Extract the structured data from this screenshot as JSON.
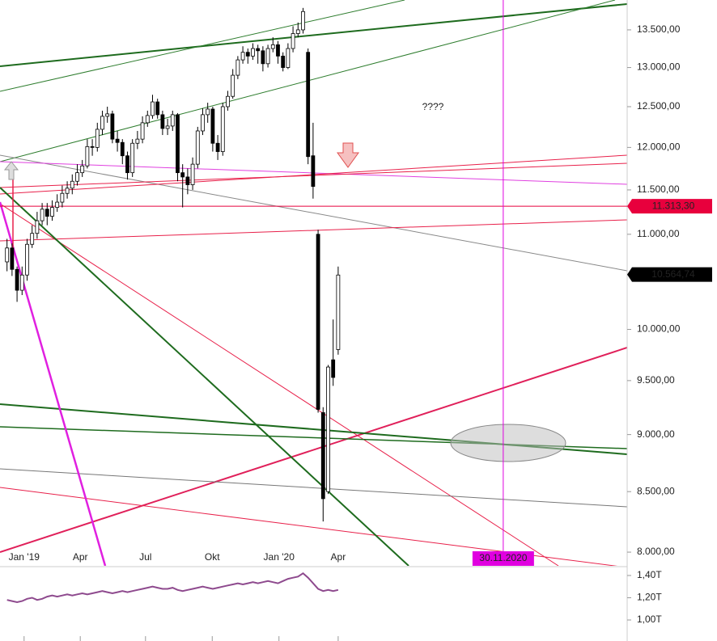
{
  "chart_data": [
    {
      "type": "candlestick",
      "open": [
        10700,
        10850,
        10620,
        10400,
        10560,
        10890,
        11010,
        11150,
        11280,
        11200,
        11300,
        11360,
        11460,
        11520,
        11600,
        11700,
        11780,
        12010,
        12000,
        12220,
        12380,
        12410,
        12100,
        12060,
        11900,
        11700,
        12050,
        12100,
        12300,
        12390,
        12560,
        12400,
        12230,
        12260,
        12400,
        11700,
        11650,
        11560,
        11800,
        12200,
        12400,
        12470,
        12050,
        11950,
        12500,
        12630,
        12900,
        13100,
        13200,
        13150,
        13250,
        13220,
        13050,
        13250,
        13300,
        13150,
        13000,
        13250,
        13450,
        13500,
        13200,
        11900,
        11000,
        9200,
        8500,
        9700,
        9800
      ],
      "high": [
        10950,
        10900,
        10650,
        10650,
        10950,
        11100,
        11250,
        11350,
        11350,
        11380,
        11450,
        11550,
        11600,
        11680,
        11800,
        11850,
        12100,
        12100,
        12300,
        12450,
        12500,
        12450,
        12200,
        12100,
        11950,
        12100,
        12200,
        12380,
        12450,
        12650,
        12600,
        12450,
        12350,
        12450,
        12420,
        11800,
        11750,
        11880,
        12250,
        12480,
        12550,
        12500,
        12150,
        12550,
        12700,
        12980,
        13150,
        13280,
        13250,
        13320,
        13300,
        13280,
        13300,
        13400,
        13350,
        13200,
        13320,
        13550,
        13600,
        13800,
        13250,
        12300,
        11050,
        9250,
        9650,
        10100,
        10650
      ],
      "low": [
        10600,
        10550,
        10280,
        10350,
        10500,
        10850,
        10950,
        11100,
        11100,
        11150,
        11250,
        11300,
        11400,
        11450,
        11550,
        11650,
        11750,
        11900,
        11950,
        12150,
        12300,
        12050,
        11950,
        11800,
        11620,
        11650,
        11980,
        12050,
        12250,
        12350,
        12350,
        12150,
        12150,
        12200,
        11600,
        11300,
        11450,
        11500,
        11750,
        12150,
        12300,
        11950,
        11850,
        11900,
        12450,
        12600,
        12850,
        13050,
        13050,
        13100,
        13050,
        12950,
        13000,
        13200,
        13050,
        12950,
        12980,
        13200,
        13400,
        13450,
        11800,
        11400,
        9200,
        8250,
        8480,
        9450,
        9750
      ],
      "close": [
        10850,
        10620,
        10400,
        10560,
        10890,
        11010,
        11150,
        11280,
        11200,
        11300,
        11360,
        11460,
        11520,
        11600,
        11700,
        11780,
        12010,
        12000,
        12220,
        12380,
        12410,
        12100,
        12060,
        11900,
        11700,
        12050,
        12100,
        12300,
        12390,
        12560,
        12400,
        12230,
        12260,
        12400,
        11700,
        11650,
        11560,
        11800,
        12200,
        12400,
        12470,
        12050,
        11950,
        12500,
        12630,
        12900,
        13100,
        13200,
        13150,
        13250,
        13220,
        13050,
        13250,
        13300,
        13150,
        13000,
        13250,
        13450,
        13500,
        13750,
        11890,
        11540,
        9230,
        8440,
        9630,
        9530,
        10560
      ],
      "up_color": "#ffffff",
      "down_color": "#000000",
      "xlim": [
        -1.4,
        123.6
      ],
      "xticks": [
        {
          "value": 3.4,
          "label": "Jan '19"
        },
        {
          "value": 14.6,
          "label": "Apr"
        },
        {
          "value": 27.6,
          "label": "Jul"
        },
        {
          "value": 40.9,
          "label": "Okt"
        },
        {
          "value": 54.2,
          "label": "Jan '20"
        },
        {
          "value": 66,
          "label": "Apr"
        }
      ],
      "ylim": [
        7891,
        13910
      ],
      "log_scale": true,
      "yticks": [
        {
          "value": 8000,
          "label": "8.000,00"
        },
        {
          "value": 8500,
          "label": "8.500,00"
        },
        {
          "value": 9000,
          "label": "9.000,00"
        },
        {
          "value": 9500,
          "label": "9.500,00"
        },
        {
          "value": 10000,
          "label": "10.000,00"
        },
        {
          "value": 11000,
          "label": "11.000,00"
        },
        {
          "value": 11500,
          "label": "11.500,00"
        },
        {
          "value": 12000,
          "label": "12.000,00"
        },
        {
          "value": 12500,
          "label": "12.500,00"
        },
        {
          "value": 13000,
          "label": "13.000,00"
        },
        {
          "value": 13500,
          "label": "13.500,00"
        }
      ],
      "price_labels": [
        {
          "value": 11313.3,
          "label": "11.313,30",
          "color": "#e8003d"
        },
        {
          "value": 10564.74,
          "label": "10.564,74",
          "color": "#000000"
        }
      ],
      "vline": {
        "value": 98.9,
        "label": "30.11.2020",
        "color": "#e000e0"
      },
      "annotation": "????"
    },
    {
      "type": "line",
      "color": "#8e4a8e",
      "values": [
        1.18,
        1.17,
        1.16,
        1.17,
        1.19,
        1.2,
        1.18,
        1.19,
        1.21,
        1.22,
        1.21,
        1.22,
        1.23,
        1.22,
        1.23,
        1.24,
        1.23,
        1.24,
        1.25,
        1.26,
        1.25,
        1.24,
        1.25,
        1.26,
        1.25,
        1.26,
        1.27,
        1.28,
        1.29,
        1.3,
        1.29,
        1.28,
        1.28,
        1.29,
        1.27,
        1.26,
        1.27,
        1.28,
        1.29,
        1.3,
        1.29,
        1.28,
        1.29,
        1.3,
        1.31,
        1.32,
        1.33,
        1.32,
        1.33,
        1.34,
        1.33,
        1.34,
        1.35,
        1.34,
        1.33,
        1.35,
        1.37,
        1.38,
        1.39,
        1.42,
        1.38,
        1.33,
        1.28,
        1.26,
        1.27,
        1.26,
        1.27
      ],
      "xlim": [
        -1.4,
        123.6
      ],
      "ylim": [
        0.811,
        1.465
      ],
      "yticks": [
        {
          "value": 1.4,
          "label": "1,40T"
        },
        {
          "value": 1.2,
          "label": "1,20T"
        },
        {
          "value": 1.0,
          "label": "1,00T"
        }
      ]
    }
  ]
}
